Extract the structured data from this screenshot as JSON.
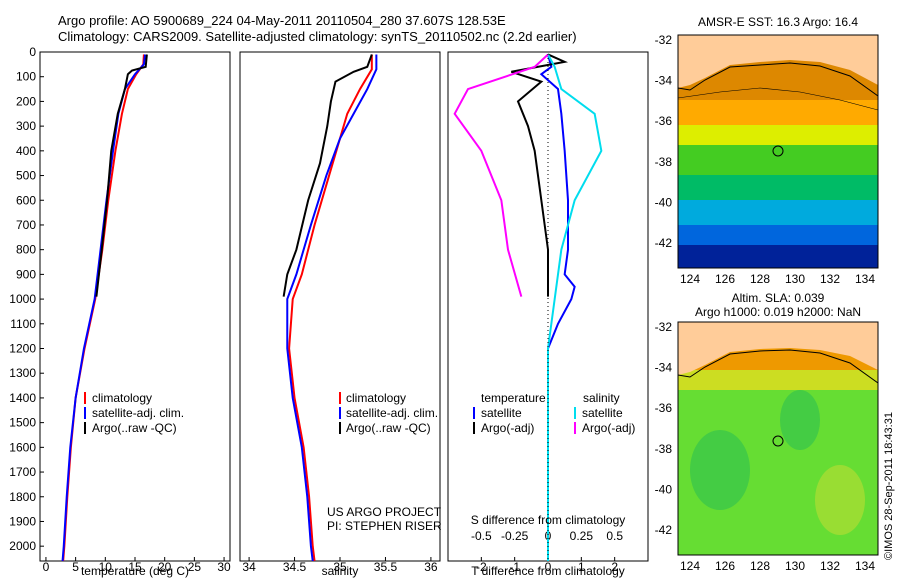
{
  "header": {
    "line1": "Argo profile: AO 5900689_224 04-May-2011 20110504_280 37.607S 128.53E",
    "line2": "Climatology: CARS2009. Satellite-adjusted climatology: synTS_20110502.nc (2.2d earlier)"
  },
  "colors": {
    "climatology": "#ff0000",
    "satellite": "#0000ff",
    "argo": "#000000",
    "sat_salinity": "#00ddee",
    "argo_salinity": "#ff00ff"
  },
  "chart_data": [
    {
      "type": "line",
      "panel": "temperature",
      "xlabel": "temperature (deg C)",
      "xlim": [
        -1,
        31
      ],
      "xticks": [
        "0",
        "5",
        "10",
        "15",
        "20",
        "25",
        "30"
      ],
      "ylim": [
        2060,
        0
      ],
      "yticks": [
        "0",
        "100",
        "200",
        "300",
        "400",
        "500",
        "600",
        "700",
        "800",
        "900",
        "1000",
        "1100",
        "1200",
        "1300",
        "1400",
        "1500",
        "1600",
        "1700",
        "1800",
        "1900",
        "2000"
      ],
      "legend": [
        "climatology",
        "satellite-adj. clim.",
        "Argo(..raw -QC)"
      ],
      "series": [
        {
          "name": "climatology",
          "points": [
            [
              16.5,
              10
            ],
            [
              16.4,
              50
            ],
            [
              15.2,
              90
            ],
            [
              13.8,
              150
            ],
            [
              12.8,
              250
            ],
            [
              11.7,
              400
            ],
            [
              10.5,
              600
            ],
            [
              9.5,
              800
            ],
            [
              8.3,
              1000
            ],
            [
              6.5,
              1200
            ],
            [
              5.0,
              1400
            ],
            [
              4.2,
              1600
            ],
            [
              3.6,
              1800
            ],
            [
              3.1,
              2000
            ],
            [
              2.9,
              2060
            ]
          ]
        },
        {
          "name": "satellite-adj. clim.",
          "points": [
            [
              16.7,
              10
            ],
            [
              16.5,
              50
            ],
            [
              15.0,
              90
            ],
            [
              13.3,
              150
            ],
            [
              12.2,
              250
            ],
            [
              11.3,
              400
            ],
            [
              10.2,
              600
            ],
            [
              9.2,
              800
            ],
            [
              8.2,
              1000
            ],
            [
              6.4,
              1200
            ],
            [
              5.0,
              1400
            ],
            [
              4.1,
              1600
            ],
            [
              3.5,
              1800
            ],
            [
              3.0,
              2000
            ],
            [
              2.8,
              2060
            ]
          ]
        },
        {
          "name": "Argo(..raw -QC)",
          "points": [
            [
              17.0,
              10
            ],
            [
              16.8,
              60
            ],
            [
              14.5,
              75
            ],
            [
              13.8,
              90
            ],
            [
              13.3,
              150
            ],
            [
              12.1,
              250
            ],
            [
              11.0,
              400
            ],
            [
              10.3,
              600
            ],
            [
              9.4,
              800
            ],
            [
              8.5,
              990
            ]
          ]
        }
      ]
    },
    {
      "type": "line",
      "panel": "salinity",
      "xlabel": "salinity",
      "xlim": [
        33.9,
        36.1
      ],
      "xticks": [
        "34",
        "34.5",
        "35",
        "35.5",
        "36"
      ],
      "ylim": [
        2060,
        0
      ],
      "legend": [
        "climatology",
        "satellite-adj. clim.",
        "Argo(..raw -QC)"
      ],
      "series": [
        {
          "name": "climatology",
          "points": [
            [
              35.35,
              10
            ],
            [
              35.35,
              70
            ],
            [
              35.22,
              150
            ],
            [
              35.08,
              250
            ],
            [
              35.0,
              350
            ],
            [
              34.88,
              500
            ],
            [
              34.72,
              700
            ],
            [
              34.58,
              900
            ],
            [
              34.48,
              1000
            ],
            [
              34.44,
              1200
            ],
            [
              34.5,
              1400
            ],
            [
              34.6,
              1600
            ],
            [
              34.66,
              1800
            ],
            [
              34.7,
              2000
            ],
            [
              34.72,
              2060
            ]
          ]
        },
        {
          "name": "satellite-adj. clim.",
          "points": [
            [
              35.4,
              10
            ],
            [
              35.4,
              70
            ],
            [
              35.3,
              150
            ],
            [
              35.15,
              250
            ],
            [
              35.0,
              350
            ],
            [
              34.85,
              500
            ],
            [
              34.68,
              700
            ],
            [
              34.52,
              900
            ],
            [
              34.42,
              1000
            ],
            [
              34.42,
              1200
            ],
            [
              34.48,
              1400
            ],
            [
              34.58,
              1600
            ],
            [
              34.64,
              1800
            ],
            [
              34.68,
              2000
            ],
            [
              34.7,
              2060
            ]
          ]
        },
        {
          "name": "Argo(..raw -QC)",
          "points": [
            [
              35.35,
              10
            ],
            [
              35.3,
              60
            ],
            [
              35.15,
              80
            ],
            [
              34.95,
              120
            ],
            [
              34.9,
              200
            ],
            [
              34.86,
              300
            ],
            [
              34.78,
              450
            ],
            [
              34.65,
              600
            ],
            [
              34.52,
              800
            ],
            [
              34.42,
              900
            ],
            [
              34.38,
              990
            ]
          ]
        }
      ]
    },
    {
      "type": "line",
      "panel": "difference",
      "xlabel": "T difference from climatology",
      "xlabel_top": "S difference from climatology",
      "xlim": [
        -3,
        3
      ],
      "xticks": [
        "-2",
        "-1",
        "0",
        "1",
        "2"
      ],
      "xticks_top": [
        "-0.5",
        "-0.25",
        "0",
        "0.25",
        "0.5"
      ],
      "ylim": [
        2060,
        0
      ],
      "legend": {
        "temperature_header": "temperature",
        "salinity_header": "salinity",
        "items": [
          "satellite",
          "Argo(-adj)",
          "satellite",
          "Argo(-adj)"
        ]
      },
      "series": [
        {
          "name": "temperature satellite",
          "points": [
            [
              0,
              10
            ],
            [
              0.1,
              60
            ],
            [
              -0.2,
              90
            ],
            [
              0.3,
              150
            ],
            [
              0.4,
              250
            ],
            [
              0.5,
              400
            ],
            [
              0.6,
              600
            ],
            [
              0.6,
              800
            ],
            [
              0.5,
              900
            ],
            [
              0.8,
              950
            ],
            [
              0.7,
              1000
            ],
            [
              0.3,
              1100
            ],
            [
              0,
              1200
            ],
            [
              0,
              2060
            ]
          ]
        },
        {
          "name": "temperature Argo(-adj)",
          "points": [
            [
              0,
              10
            ],
            [
              0.5,
              40
            ],
            [
              -1.1,
              80
            ],
            [
              -0.2,
              120
            ],
            [
              -0.9,
              200
            ],
            [
              -0.6,
              300
            ],
            [
              -0.4,
              400
            ],
            [
              -0.2,
              600
            ],
            [
              0,
              800
            ],
            [
              0,
              990
            ]
          ]
        },
        {
          "name": "salinity satellite",
          "points": [
            [
              0,
              10
            ],
            [
              0.05,
              60
            ],
            [
              0.1,
              150
            ],
            [
              0.35,
              250
            ],
            [
              0.4,
              400
            ],
            [
              0.2,
              600
            ],
            [
              0.1,
              800
            ],
            [
              0.05,
              1000
            ],
            [
              0,
              1200
            ],
            [
              0,
              2060
            ]
          ]
        },
        {
          "name": "salinity Argo(-adj)",
          "points": [
            [
              0,
              10
            ],
            [
              -0.1,
              60
            ],
            [
              -0.6,
              150
            ],
            [
              -0.7,
              250
            ],
            [
              -0.5,
              400
            ],
            [
              -0.35,
              600
            ],
            [
              -0.3,
              800
            ],
            [
              -0.2,
              990
            ]
          ]
        }
      ]
    },
    {
      "type": "heatmap",
      "panel": "sst-map",
      "title": "AMSR-E SST: 16.3 Argo: 16.4",
      "xticks": [
        "124",
        "126",
        "128",
        "130",
        "132",
        "134"
      ],
      "yticks": [
        "-32",
        "-34",
        "-36",
        "-38",
        "-40",
        "-42"
      ],
      "marker": {
        "lon": 128.53,
        "lat": -37.607
      }
    },
    {
      "type": "heatmap",
      "panel": "sla-map",
      "title_line1": "Altim. SLA: 0.039",
      "title_line2": "Argo h1000: 0.019 h2000: NaN",
      "xticks": [
        "124",
        "126",
        "128",
        "130",
        "132",
        "134"
      ],
      "yticks": [
        "-32",
        "-34",
        "-36",
        "-38",
        "-40",
        "-42"
      ],
      "marker": {
        "lon": 128.53,
        "lat": -37.607
      }
    }
  ],
  "annotations": {
    "project_line1": "US ARGO PROJECT",
    "project_line2": "PI: STEPHEN RISER",
    "imos_stamp": "©IMOS 28-Sep-2011 18:43:31"
  }
}
